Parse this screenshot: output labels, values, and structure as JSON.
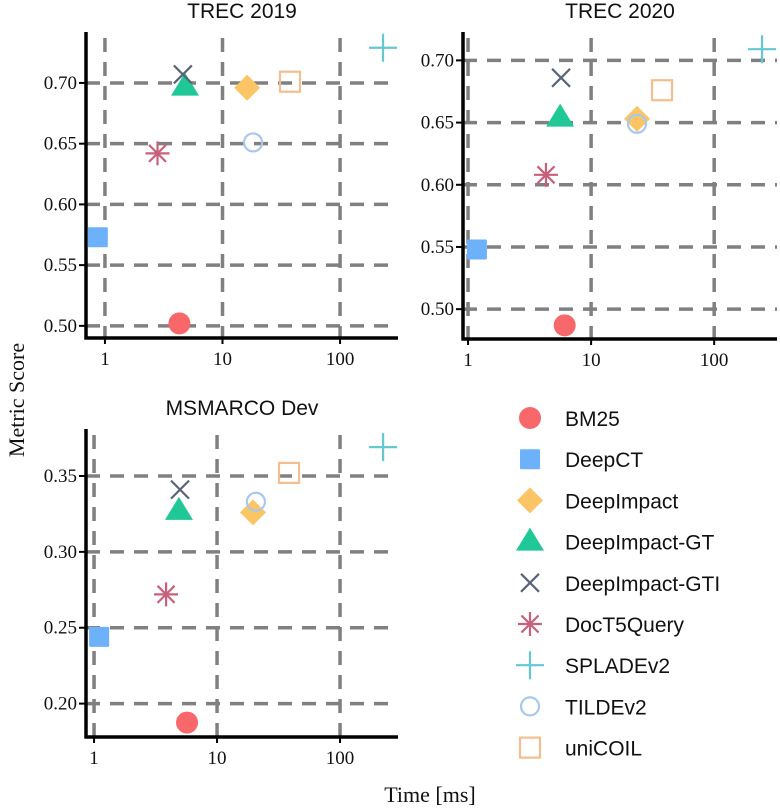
{
  "figure": {
    "ylabel": "Metric Score",
    "xlabel": "Time [ms]"
  },
  "legend": {
    "placement": "bottom-right",
    "entries": [
      {
        "name": "BM25",
        "marker": "circle-filled",
        "color": "#f8686a"
      },
      {
        "name": "DeepCT",
        "marker": "square-filled",
        "color": "#6db1fb"
      },
      {
        "name": "DeepImpact",
        "marker": "diamond-filled",
        "color": "#fbc566"
      },
      {
        "name": "DeepImpact-GT",
        "marker": "triangle-filled",
        "color": "#1fc896"
      },
      {
        "name": "DeepImpact-GTI",
        "marker": "x",
        "color": "#5a6478"
      },
      {
        "name": "DocT5Query",
        "marker": "asterisk",
        "color": "#c8607c"
      },
      {
        "name": "SPLADEv2",
        "marker": "plus",
        "color": "#63c8d3"
      },
      {
        "name": "TILDEv2",
        "marker": "circle-open",
        "color": "#a8c8ee"
      },
      {
        "name": "uniCOIL",
        "marker": "square-open",
        "color": "#f5be8e"
      }
    ]
  },
  "chart_data": [
    {
      "type": "scatter",
      "title": "TREC 2019",
      "xscale": "log",
      "xlim": [
        0.69,
        311
      ],
      "ylim": [
        0.49,
        0.737
      ],
      "xticks": [
        "1",
        "10",
        "100"
      ],
      "xtick_values": [
        1,
        10,
        100
      ],
      "yticks": [
        "0.50",
        "0.55",
        "0.60",
        "0.65",
        "0.70"
      ],
      "ytick_values": [
        0.5,
        0.55,
        0.6,
        0.65,
        0.7
      ],
      "grid": true,
      "points": [
        {
          "series": "BM25",
          "x": 4.3,
          "y": 0.502
        },
        {
          "series": "DeepCT",
          "x": 0.87,
          "y": 0.573
        },
        {
          "series": "DeepImpact",
          "x": 16.2,
          "y": 0.696
        },
        {
          "series": "DeepImpact-GT",
          "x": 4.8,
          "y": 0.697
        },
        {
          "series": "DeepImpact-GTI",
          "x": 4.6,
          "y": 0.707
        },
        {
          "series": "DocT5Query",
          "x": 2.8,
          "y": 0.642
        },
        {
          "series": "SPLADEv2",
          "x": 232,
          "y": 0.729
        },
        {
          "series": "TILDEv2",
          "x": 18.2,
          "y": 0.651
        },
        {
          "series": "uniCOIL",
          "x": 37.5,
          "y": 0.701
        }
      ]
    },
    {
      "type": "scatter",
      "title": "TREC 2020",
      "xscale": "log",
      "xlim": [
        0.91,
        324
      ],
      "ylim": [
        0.476,
        0.718
      ],
      "xticks": [
        "1",
        "10",
        "100"
      ],
      "xtick_values": [
        1,
        10,
        100
      ],
      "yticks": [
        "0.50",
        "0.55",
        "0.60",
        "0.65",
        "0.70"
      ],
      "ytick_values": [
        0.5,
        0.55,
        0.6,
        0.65,
        0.7
      ],
      "grid": true,
      "points": [
        {
          "series": "BM25",
          "x": 6.1,
          "y": 0.487
        },
        {
          "series": "DeepCT",
          "x": 1.18,
          "y": 0.548
        },
        {
          "series": "DeepImpact",
          "x": 23.6,
          "y": 0.653
        },
        {
          "series": "DeepImpact-GT",
          "x": 5.6,
          "y": 0.654
        },
        {
          "series": "DeepImpact-GTI",
          "x": 5.7,
          "y": 0.686
        },
        {
          "series": "DocT5Query",
          "x": 4.3,
          "y": 0.608
        },
        {
          "series": "SPLADEv2",
          "x": 245,
          "y": 0.709
        },
        {
          "series": "TILDEv2",
          "x": 23.6,
          "y": 0.649
        },
        {
          "series": "uniCOIL",
          "x": 37.7,
          "y": 0.676
        }
      ]
    },
    {
      "type": "scatter",
      "title": "MSMARCO Dev",
      "xscale": "log",
      "xlim": [
        0.86,
        296
      ],
      "ylim": [
        0.178,
        0.377
      ],
      "xticks": [
        "1",
        "10",
        "100"
      ],
      "xtick_values": [
        1,
        10,
        100
      ],
      "yticks": [
        "0.20",
        "0.25",
        "0.30",
        "0.35"
      ],
      "ytick_values": [
        0.2,
        0.25,
        0.3,
        0.35
      ],
      "grid": true,
      "points": [
        {
          "series": "BM25",
          "x": 5.7,
          "y": 0.1875
        },
        {
          "series": "DeepCT",
          "x": 1.1,
          "y": 0.244
        },
        {
          "series": "DeepImpact",
          "x": 19.6,
          "y": 0.326
        },
        {
          "series": "DeepImpact-GT",
          "x": 4.9,
          "y": 0.327
        },
        {
          "series": "DeepImpact-GTI",
          "x": 5.0,
          "y": 0.341
        },
        {
          "series": "DocT5Query",
          "x": 3.85,
          "y": 0.272
        },
        {
          "series": "SPLADEv2",
          "x": 224,
          "y": 0.369
        },
        {
          "series": "TILDEv2",
          "x": 20.7,
          "y": 0.333
        },
        {
          "series": "uniCOIL",
          "x": 38.5,
          "y": 0.352
        }
      ]
    }
  ]
}
